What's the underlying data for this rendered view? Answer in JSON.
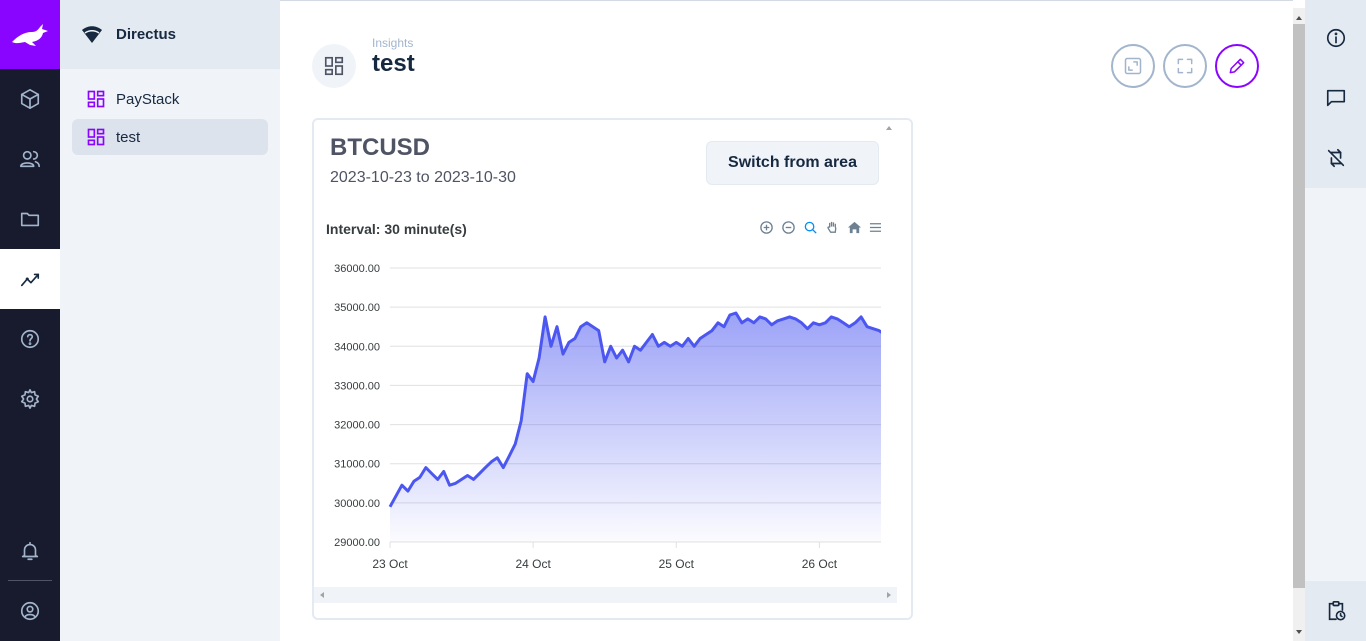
{
  "project": {
    "name": "Directus"
  },
  "nav": {
    "items": [
      {
        "label": "PayStack",
        "active": false
      },
      {
        "label": "test",
        "active": true
      }
    ]
  },
  "header": {
    "breadcrumb": "Insights",
    "title": "test"
  },
  "panel": {
    "title": "BTCUSD",
    "range": "2023-10-23 to 2023-10-30",
    "switch_label": "Switch from area",
    "interval_label": "Interval: 30 minute(s)"
  },
  "colors": {
    "accent": "#8a05ff",
    "series": "#4b57f0",
    "module_bar": "#181b2d"
  },
  "chart_data": {
    "type": "area",
    "title": "Interval: 30 minute(s)",
    "xlabel": "",
    "ylabel": "",
    "ylim": [
      29000,
      36000
    ],
    "x_range": [
      "2023-10-23",
      "2023-10-26T11:00"
    ],
    "y_ticks": [
      "29000.00",
      "30000.00",
      "31000.00",
      "32000.00",
      "33000.00",
      "34000.00",
      "35000.00",
      "36000.00"
    ],
    "x_ticks": [
      "23 Oct",
      "24 Oct",
      "25 Oct",
      "26 Oct"
    ],
    "grid": true,
    "series": [
      {
        "name": "",
        "points": [
          [
            "2023-10-23T00:00",
            29900
          ],
          [
            "2023-10-23T02:00",
            30450
          ],
          [
            "2023-10-23T03:00",
            30300
          ],
          [
            "2023-10-23T04:00",
            30550
          ],
          [
            "2023-10-23T05:00",
            30650
          ],
          [
            "2023-10-23T06:00",
            30900
          ],
          [
            "2023-10-23T07:00",
            30750
          ],
          [
            "2023-10-23T08:00",
            30600
          ],
          [
            "2023-10-23T09:00",
            30800
          ],
          [
            "2023-10-23T10:00",
            30450
          ],
          [
            "2023-10-23T11:00",
            30500
          ],
          [
            "2023-10-23T12:00",
            30600
          ],
          [
            "2023-10-23T13:00",
            30700
          ],
          [
            "2023-10-23T14:00",
            30600
          ],
          [
            "2023-10-23T15:00",
            30750
          ],
          [
            "2023-10-23T16:00",
            30900
          ],
          [
            "2023-10-23T17:00",
            31050
          ],
          [
            "2023-10-23T18:00",
            31150
          ],
          [
            "2023-10-23T19:00",
            30900
          ],
          [
            "2023-10-23T20:00",
            31200
          ],
          [
            "2023-10-23T21:00",
            31500
          ],
          [
            "2023-10-23T22:00",
            32100
          ],
          [
            "2023-10-23T23:00",
            33300
          ],
          [
            "2023-10-24T00:00",
            33100
          ],
          [
            "2023-10-24T01:00",
            33700
          ],
          [
            "2023-10-24T02:00",
            34750
          ],
          [
            "2023-10-24T03:00",
            34000
          ],
          [
            "2023-10-24T04:00",
            34500
          ],
          [
            "2023-10-24T05:00",
            33800
          ],
          [
            "2023-10-24T06:00",
            34100
          ],
          [
            "2023-10-24T07:00",
            34200
          ],
          [
            "2023-10-24T08:00",
            34500
          ],
          [
            "2023-10-24T09:00",
            34600
          ],
          [
            "2023-10-24T10:00",
            34500
          ],
          [
            "2023-10-24T11:00",
            34400
          ],
          [
            "2023-10-24T12:00",
            33600
          ],
          [
            "2023-10-24T13:00",
            34000
          ],
          [
            "2023-10-24T14:00",
            33700
          ],
          [
            "2023-10-24T15:00",
            33900
          ],
          [
            "2023-10-24T16:00",
            33600
          ],
          [
            "2023-10-24T17:00",
            34000
          ],
          [
            "2023-10-24T18:00",
            33900
          ],
          [
            "2023-10-24T19:00",
            34100
          ],
          [
            "2023-10-24T20:00",
            34300
          ],
          [
            "2023-10-24T21:00",
            34000
          ],
          [
            "2023-10-24T22:00",
            34100
          ],
          [
            "2023-10-24T23:00",
            34000
          ],
          [
            "2023-10-25T00:00",
            34100
          ],
          [
            "2023-10-25T01:00",
            34000
          ],
          [
            "2023-10-25T02:00",
            34200
          ],
          [
            "2023-10-25T03:00",
            34000
          ],
          [
            "2023-10-25T04:00",
            34200
          ],
          [
            "2023-10-25T05:00",
            34300
          ],
          [
            "2023-10-25T06:00",
            34400
          ],
          [
            "2023-10-25T07:00",
            34600
          ],
          [
            "2023-10-25T08:00",
            34500
          ],
          [
            "2023-10-25T09:00",
            34800
          ],
          [
            "2023-10-25T10:00",
            34850
          ],
          [
            "2023-10-25T11:00",
            34600
          ],
          [
            "2023-10-25T12:00",
            34700
          ],
          [
            "2023-10-25T13:00",
            34600
          ],
          [
            "2023-10-25T14:00",
            34750
          ],
          [
            "2023-10-25T15:00",
            34700
          ],
          [
            "2023-10-25T16:00",
            34550
          ],
          [
            "2023-10-25T17:00",
            34650
          ],
          [
            "2023-10-25T18:00",
            34700
          ],
          [
            "2023-10-25T19:00",
            34750
          ],
          [
            "2023-10-25T20:00",
            34700
          ],
          [
            "2023-10-25T21:00",
            34600
          ],
          [
            "2023-10-25T22:00",
            34450
          ],
          [
            "2023-10-25T23:00",
            34600
          ],
          [
            "2023-10-26T00:00",
            34550
          ],
          [
            "2023-10-26T01:00",
            34600
          ],
          [
            "2023-10-26T02:00",
            34750
          ],
          [
            "2023-10-26T03:00",
            34700
          ],
          [
            "2023-10-26T04:00",
            34600
          ],
          [
            "2023-10-26T05:00",
            34500
          ],
          [
            "2023-10-26T06:00",
            34600
          ],
          [
            "2023-10-26T07:00",
            34750
          ],
          [
            "2023-10-26T08:00",
            34500
          ],
          [
            "2023-10-26T09:00",
            34450
          ],
          [
            "2023-10-26T10:00",
            34400
          ],
          [
            "2023-10-26T11:00",
            34300
          ]
        ]
      }
    ]
  }
}
